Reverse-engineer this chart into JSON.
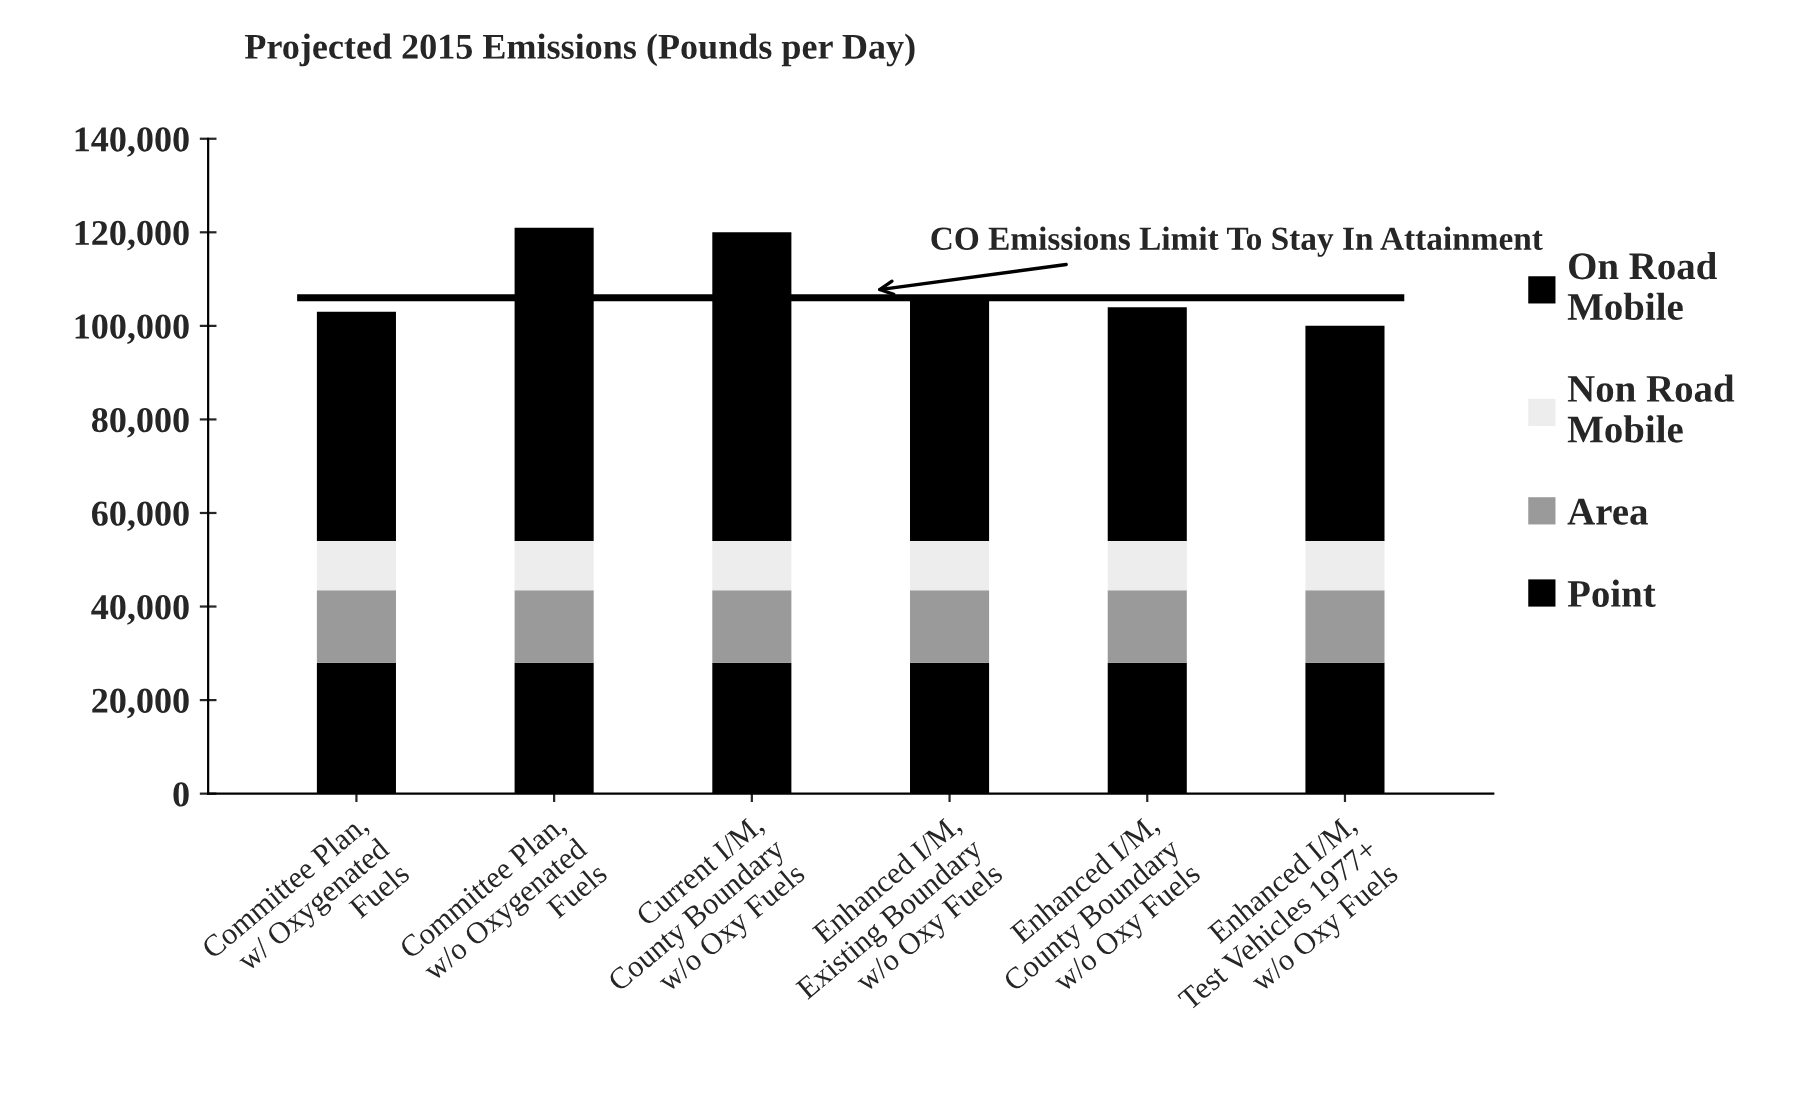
{
  "chart_data": {
    "type": "bar",
    "title": "Projected 2015 Emissions (Pounds per Day)",
    "categories": [
      "Committee Plan,\nw/ Oxygenated\nFuels",
      "Committee Plan,\nw/o Oxygenated\nFuels",
      "Current I/M,\nCounty Boundary\nw/o Oxy Fuels",
      "Enhanced I/M,\nExisting Boundary\nw/o Oxy Fuels",
      "Enhanced I/M,\nCounty Boundary\nw/o Oxy Fuels",
      "Enhanced I/M,\nTest Vehicles 1977+\nw/o Oxy Fuels"
    ],
    "stacked": true,
    "series": [
      {
        "name": "Point",
        "color": "#000000",
        "values": [
          28000,
          28000,
          28000,
          28000,
          28000,
          28000
        ]
      },
      {
        "name": "Area",
        "color": "#9a9a9a",
        "values": [
          15500,
          15500,
          15500,
          15500,
          15500,
          15500
        ]
      },
      {
        "name": "Non Road\nMobile",
        "color": "#ededed",
        "values": [
          10500,
          10500,
          10500,
          10500,
          10500,
          10500
        ]
      },
      {
        "name": "On Road\nMobile",
        "color": "#000000",
        "values": [
          49000,
          67000,
          66000,
          52000,
          50000,
          46000
        ]
      }
    ],
    "ylim": [
      0,
      140000
    ],
    "yticks": [
      {
        "value": 0,
        "label": "0"
      },
      {
        "value": 20000,
        "label": "20,000"
      },
      {
        "value": 40000,
        "label": "40,000"
      },
      {
        "value": 60000,
        "label": "60,000"
      },
      {
        "value": 80000,
        "label": "80,000"
      },
      {
        "value": 100000,
        "label": "100,000"
      },
      {
        "value": 120000,
        "label": "120,000"
      },
      {
        "value": 140000,
        "label": "140,000"
      }
    ],
    "ref_lines": [
      {
        "axis": "y",
        "value": 106000,
        "label": "CO Emissions Limit To Stay In Attainment",
        "color": "#000000"
      }
    ],
    "grid": false,
    "legend": "right"
  }
}
